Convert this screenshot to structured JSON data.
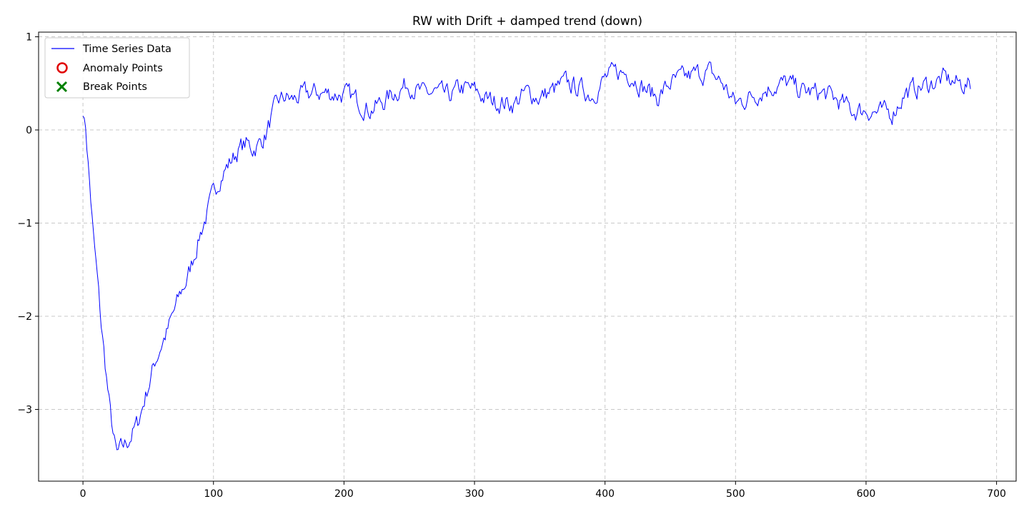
{
  "chart_data": {
    "type": "line",
    "title": "RW with Drift + damped trend (down)",
    "xlabel": "",
    "ylabel": "",
    "xlim": [
      -34,
      715
    ],
    "ylim": [
      -3.77,
      1.05
    ],
    "xticks": [
      0,
      100,
      200,
      300,
      400,
      500,
      600,
      700
    ],
    "yticks": [
      1,
      0,
      -1,
      -2,
      -3
    ],
    "xtick_labels": [
      "0",
      "100",
      "200",
      "300",
      "400",
      "500",
      "600",
      "700"
    ],
    "ytick_labels": [
      "1",
      "0",
      "−1",
      "−2",
      "−3"
    ],
    "grid": true,
    "legend": {
      "placement": "top-left",
      "entries": [
        {
          "label": "Time Series Data",
          "kind": "line",
          "color": "#0000ff"
        },
        {
          "label": "Anomaly Points",
          "kind": "circle",
          "color": "#e00000"
        },
        {
          "label": "Break Points",
          "kind": "x",
          "color": "#008000"
        }
      ]
    },
    "series": [
      {
        "name": "Time Series Data",
        "color": "#0000ff",
        "n_points": 681,
        "anchors": [
          [
            0,
            0.15
          ],
          [
            2,
            0.05
          ],
          [
            5,
            -0.55
          ],
          [
            8,
            -1.15
          ],
          [
            11,
            -1.6
          ],
          [
            14,
            -2.1
          ],
          [
            18,
            -2.65
          ],
          [
            21,
            -3.05
          ],
          [
            24,
            -3.35
          ],
          [
            26,
            -3.5
          ],
          [
            30,
            -3.42
          ],
          [
            34,
            -3.35
          ],
          [
            38,
            -3.25
          ],
          [
            42,
            -3.15
          ],
          [
            46,
            -2.95
          ],
          [
            50,
            -2.75
          ],
          [
            55,
            -2.5
          ],
          [
            60,
            -2.3
          ],
          [
            65,
            -2.15
          ],
          [
            70,
            -1.95
          ],
          [
            75,
            -1.75
          ],
          [
            80,
            -1.6
          ],
          [
            85,
            -1.35
          ],
          [
            90,
            -1.1
          ],
          [
            95,
            -0.9
          ],
          [
            100,
            -0.7
          ],
          [
            105,
            -0.5
          ],
          [
            110,
            -0.4
          ],
          [
            115,
            -0.3
          ],
          [
            120,
            -0.2
          ],
          [
            125,
            -0.15
          ],
          [
            130,
            -0.2
          ],
          [
            135,
            -0.15
          ],
          [
            140,
            -0.05
          ],
          [
            145,
            0.15
          ],
          [
            150,
            0.3
          ],
          [
            155,
            0.35
          ],
          [
            160,
            0.32
          ],
          [
            170,
            0.38
          ],
          [
            180,
            0.4
          ],
          [
            200,
            0.38
          ],
          [
            210,
            0.32
          ],
          [
            220,
            0.22
          ],
          [
            230,
            0.3
          ],
          [
            240,
            0.42
          ],
          [
            250,
            0.5
          ],
          [
            260,
            0.38
          ],
          [
            270,
            0.4
          ],
          [
            280,
            0.35
          ],
          [
            290,
            0.45
          ],
          [
            300,
            0.42
          ],
          [
            310,
            0.32
          ],
          [
            320,
            0.3
          ],
          [
            330,
            0.28
          ],
          [
            340,
            0.4
          ],
          [
            350,
            0.35
          ],
          [
            360,
            0.42
          ],
          [
            370,
            0.5
          ],
          [
            380,
            0.45
          ],
          [
            390,
            0.38
          ],
          [
            400,
            0.55
          ],
          [
            410,
            0.62
          ],
          [
            420,
            0.6
          ],
          [
            430,
            0.45
          ],
          [
            440,
            0.35
          ],
          [
            450,
            0.5
          ],
          [
            460,
            0.55
          ],
          [
            470,
            0.6
          ],
          [
            480,
            0.62
          ],
          [
            490,
            0.5
          ],
          [
            500,
            0.28
          ],
          [
            510,
            0.35
          ],
          [
            520,
            0.42
          ],
          [
            530,
            0.48
          ],
          [
            540,
            0.5
          ],
          [
            550,
            0.42
          ],
          [
            560,
            0.4
          ],
          [
            570,
            0.38
          ],
          [
            580,
            0.3
          ],
          [
            590,
            0.2
          ],
          [
            600,
            0.22
          ],
          [
            610,
            0.18
          ],
          [
            620,
            0.18
          ],
          [
            630,
            0.4
          ],
          [
            640,
            0.45
          ],
          [
            650,
            0.5
          ],
          [
            660,
            0.55
          ],
          [
            670,
            0.5
          ],
          [
            680,
            0.48
          ]
        ],
        "noise_amplitude": 0.09,
        "noise_seed": 7
      }
    ],
    "anomaly_points": [],
    "break_points": []
  }
}
